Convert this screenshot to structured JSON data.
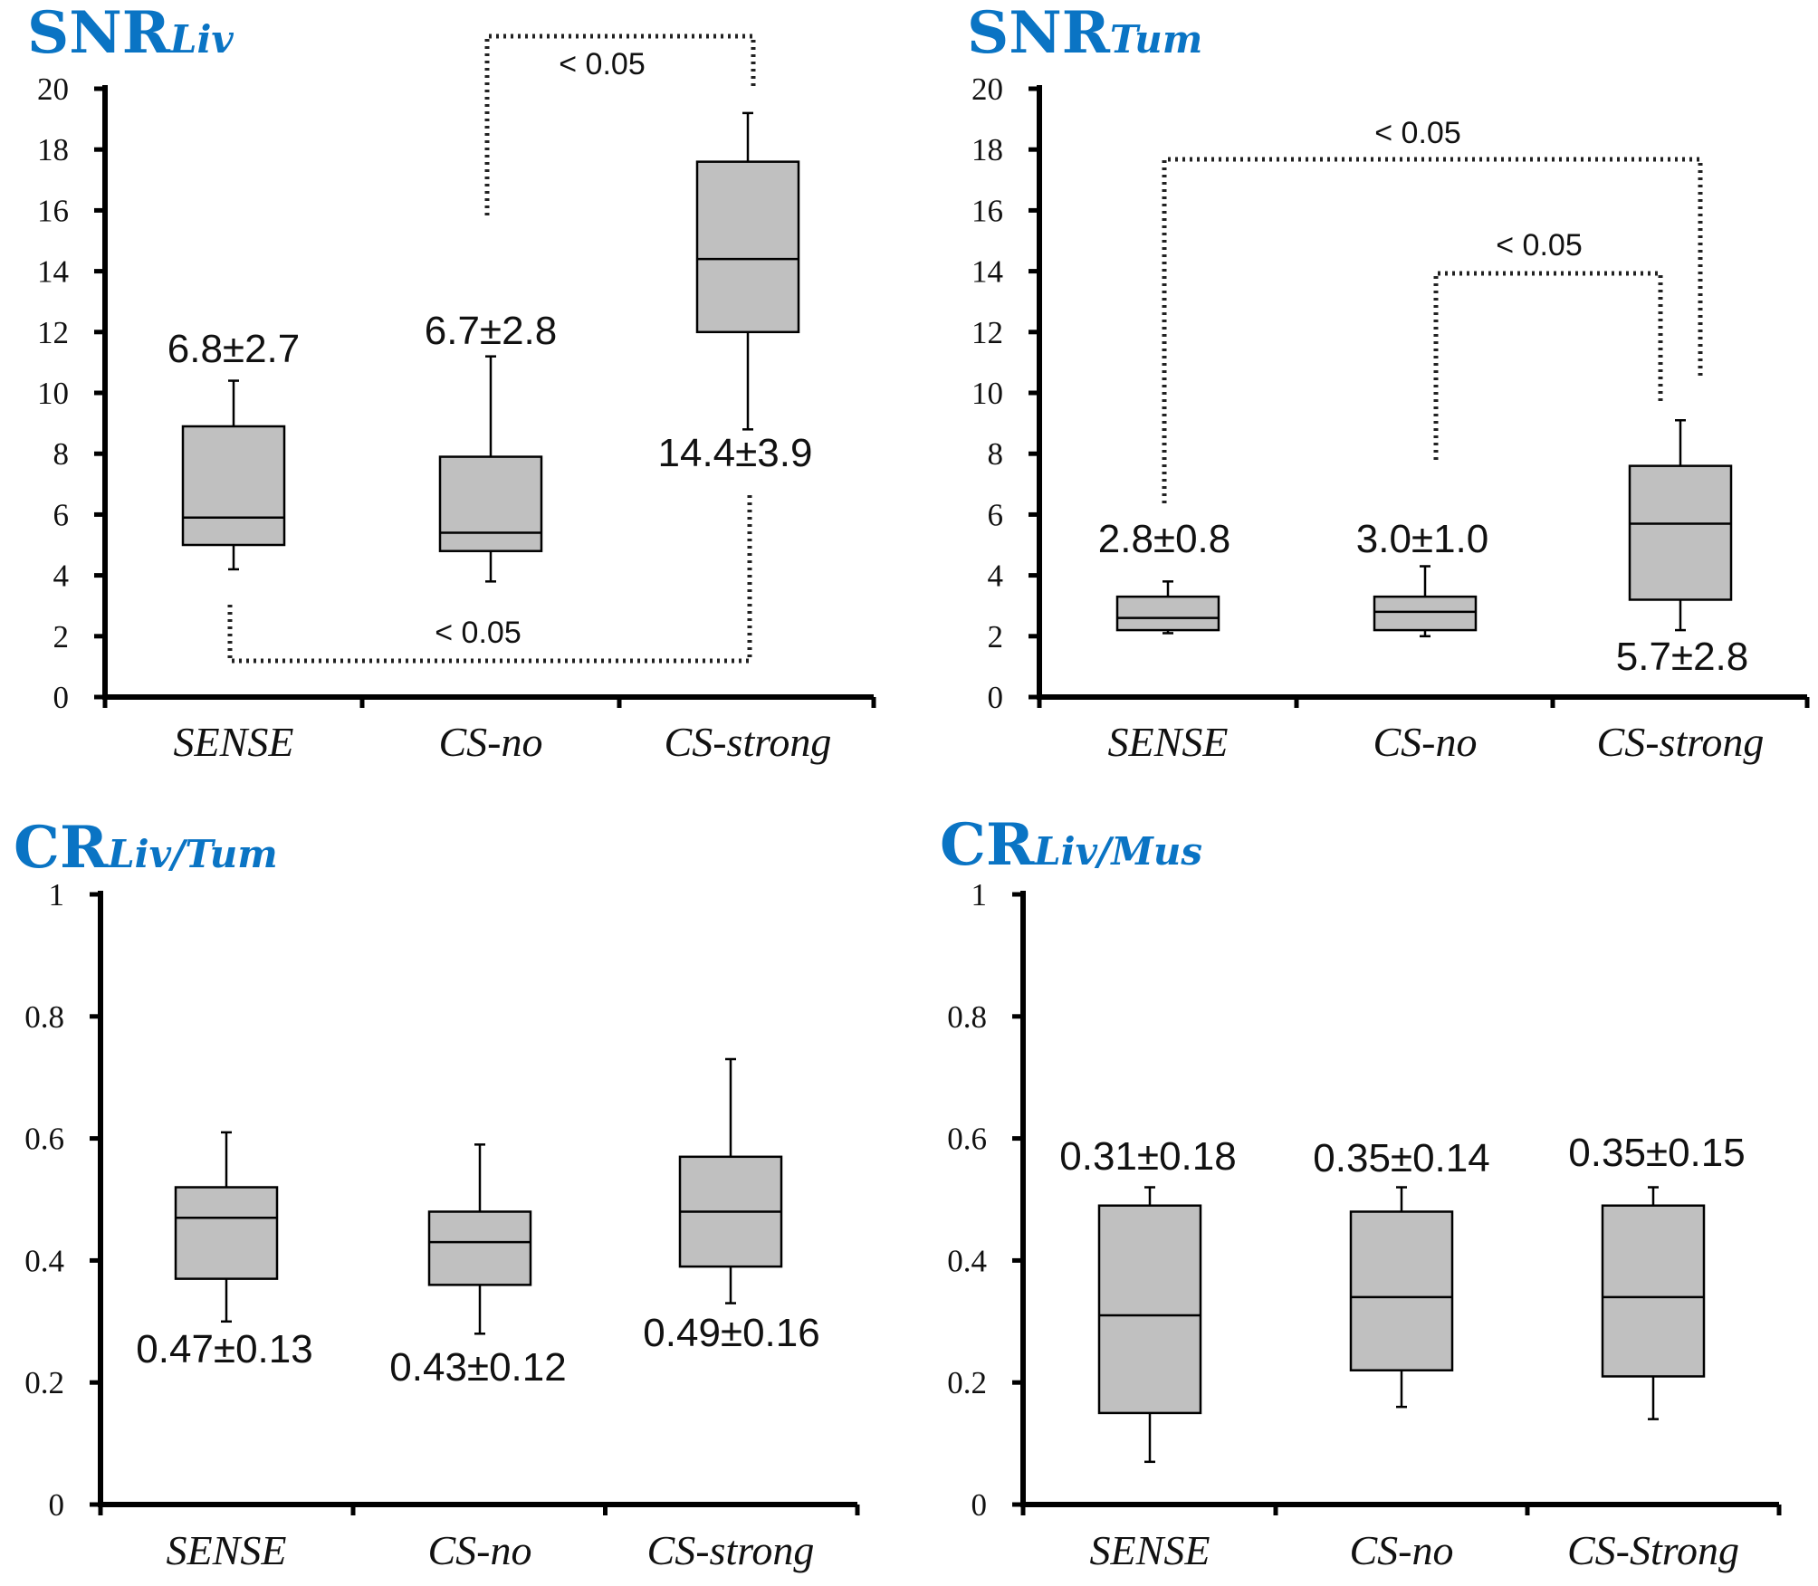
{
  "chart_data": [
    {
      "type": "box",
      "title": "SNR",
      "title_sub": "Liv",
      "categories": [
        "SENSE",
        "CS-no",
        "CS-strong"
      ],
      "ylim": [
        0,
        20
      ],
      "yticks": [
        0,
        2,
        4,
        6,
        8,
        10,
        12,
        14,
        16,
        18,
        20
      ],
      "tick_labels": [
        "0",
        "2",
        "4",
        "6",
        "8",
        "10",
        "12",
        "14",
        "16",
        "18",
        "20"
      ],
      "boxes": [
        {
          "min": 4.2,
          "q1": 5.0,
          "median": 5.9,
          "q3": 8.9,
          "max": 10.4,
          "label": "6.8±2.7"
        },
        {
          "min": 3.8,
          "q1": 4.8,
          "median": 5.4,
          "q3": 7.9,
          "max": 11.2,
          "label": "6.7±2.8"
        },
        {
          "min": 8.8,
          "q1": 12.0,
          "median": 14.4,
          "q3": 17.6,
          "max": 19.2,
          "label": "14.4±3.9"
        }
      ],
      "significance": [
        {
          "from": "CS-no",
          "to": "CS-strong",
          "label": "< 0.05"
        },
        {
          "from": "SENSE",
          "to": "CS-strong",
          "label": "< 0.05"
        }
      ]
    },
    {
      "type": "box",
      "title": "SNR",
      "title_sub": "Tum",
      "categories": [
        "SENSE",
        "CS-no",
        "CS-strong"
      ],
      "ylim": [
        0,
        20
      ],
      "yticks": [
        0,
        2,
        4,
        6,
        8,
        10,
        12,
        14,
        16,
        18,
        20
      ],
      "tick_labels": [
        "0",
        "2",
        "4",
        "6",
        "8",
        "10",
        "12",
        "14",
        "16",
        "18",
        "20"
      ],
      "boxes": [
        {
          "min": 2.1,
          "q1": 2.2,
          "median": 2.6,
          "q3": 3.3,
          "max": 3.8,
          "label": "2.8±0.8"
        },
        {
          "min": 2.0,
          "q1": 2.2,
          "median": 2.8,
          "q3": 3.3,
          "max": 4.3,
          "label": "3.0±1.0"
        },
        {
          "min": 2.2,
          "q1": 3.2,
          "median": 5.7,
          "q3": 7.6,
          "max": 9.1,
          "label": "5.7±2.8"
        }
      ],
      "significance": [
        {
          "from": "SENSE",
          "to": "CS-strong",
          "label": "< 0.05"
        },
        {
          "from": "CS-no",
          "to": "CS-strong",
          "label": "< 0.05"
        }
      ]
    },
    {
      "type": "box",
      "title": "CR",
      "title_sub": "Liv/Tum",
      "categories": [
        "SENSE",
        "CS-no",
        "CS-strong"
      ],
      "ylim": [
        0,
        1
      ],
      "yticks": [
        0,
        0.2,
        0.4,
        0.6,
        0.8,
        1
      ],
      "tick_labels": [
        "0",
        "0.2",
        "0.4",
        "0.6",
        "0.8",
        "1"
      ],
      "boxes": [
        {
          "min": 0.3,
          "q1": 0.37,
          "median": 0.47,
          "q3": 0.52,
          "max": 0.61,
          "label": "0.47±0.13"
        },
        {
          "min": 0.28,
          "q1": 0.36,
          "median": 0.43,
          "q3": 0.48,
          "max": 0.59,
          "label": "0.43±0.12"
        },
        {
          "min": 0.33,
          "q1": 0.39,
          "median": 0.48,
          "q3": 0.57,
          "max": 0.73,
          "label": "0.49±0.16"
        }
      ],
      "significance": []
    },
    {
      "type": "box",
      "title": "CR",
      "title_sub": "Liv/Mus",
      "categories": [
        "SENSE",
        "CS-no",
        "CS-Strong"
      ],
      "ylim": [
        0,
        1
      ],
      "yticks": [
        0,
        0.2,
        0.4,
        0.6,
        0.8,
        1
      ],
      "tick_labels": [
        "0",
        "0.2",
        "0.4",
        "0.6",
        "0.8",
        "1"
      ],
      "boxes": [
        {
          "min": 0.07,
          "q1": 0.15,
          "median": 0.31,
          "q3": 0.49,
          "max": 0.52,
          "label": "0.31±0.18"
        },
        {
          "min": 0.16,
          "q1": 0.22,
          "median": 0.34,
          "q3": 0.48,
          "max": 0.52,
          "label": "0.35±0.14"
        },
        {
          "min": 0.14,
          "q1": 0.21,
          "median": 0.34,
          "q3": 0.49,
          "max": 0.52,
          "label": "0.35±0.15"
        }
      ],
      "significance": []
    }
  ]
}
